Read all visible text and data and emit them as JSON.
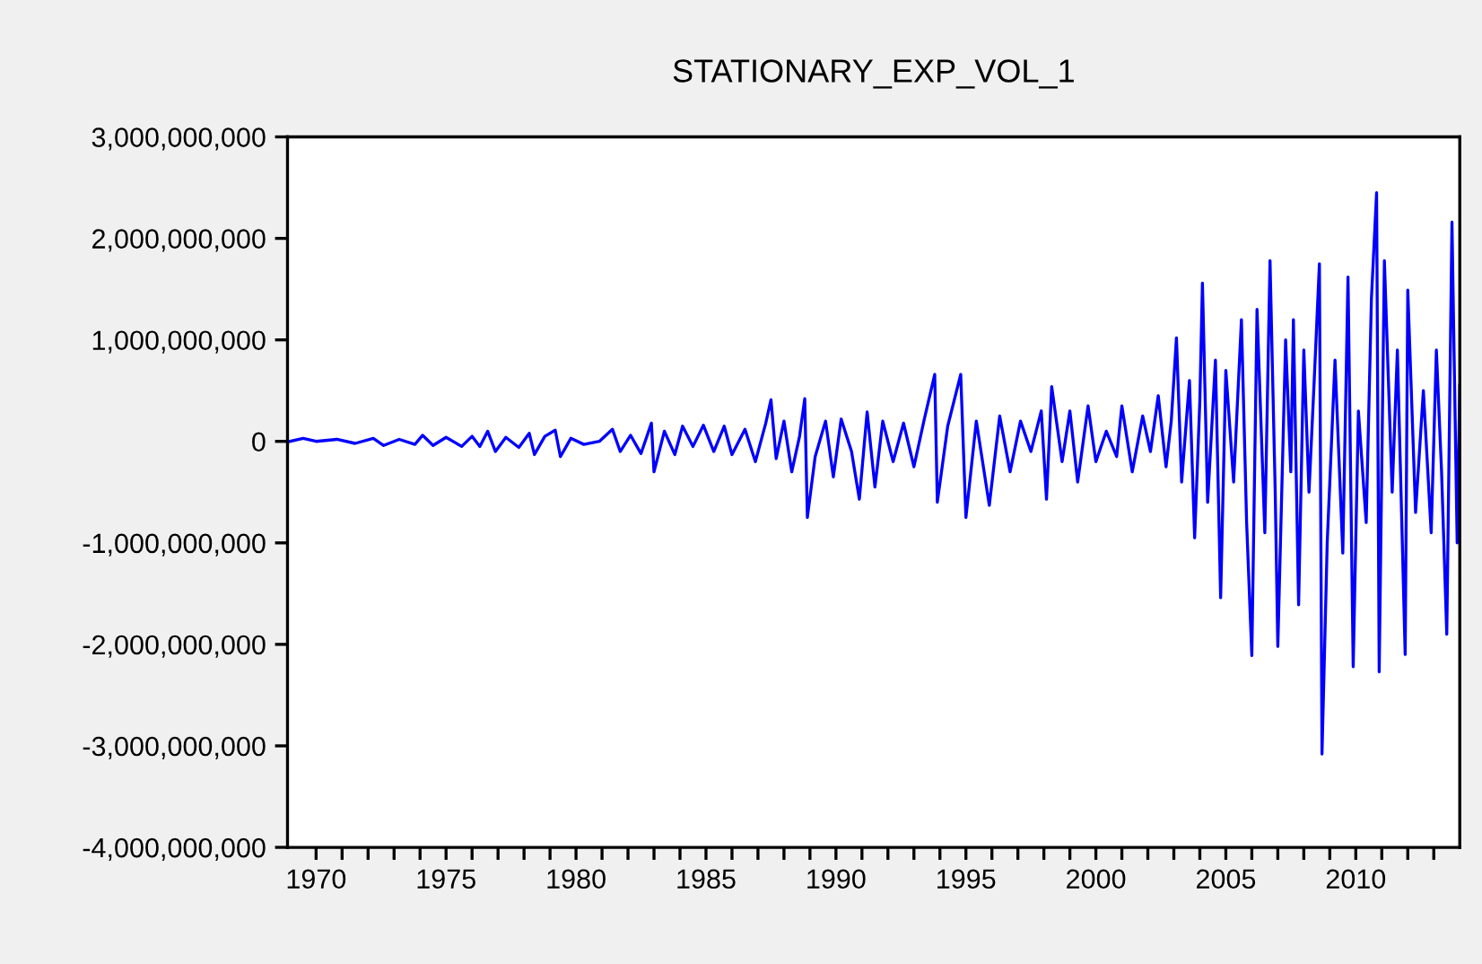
{
  "chart_data": {
    "type": "line",
    "title": "STATIONARY_EXP_VOL_1",
    "x": [
      1969.0,
      1969.5,
      1970.0,
      1970.8,
      1971.5,
      1972.2,
      1972.6,
      1973.2,
      1973.8,
      1974.1,
      1974.5,
      1975.0,
      1975.6,
      1976.0,
      1976.3,
      1976.6,
      1976.9,
      1977.3,
      1977.8,
      1978.2,
      1978.4,
      1978.8,
      1979.2,
      1979.4,
      1979.8,
      1980.3,
      1980.9,
      1981.4,
      1981.7,
      1982.1,
      1982.5,
      1982.9,
      1983.0,
      1983.4,
      1983.8,
      1984.1,
      1984.5,
      1984.9,
      1985.3,
      1985.7,
      1986.0,
      1986.5,
      1986.9,
      1987.3,
      1987.5,
      1987.7,
      1988.0,
      1988.3,
      1988.6,
      1988.8,
      1988.9,
      1989.2,
      1989.6,
      1989.9,
      1990.2,
      1990.6,
      1990.9,
      1991.2,
      1991.5,
      1991.8,
      1992.2,
      1992.6,
      1993.0,
      1993.4,
      1993.8,
      1993.9,
      1994.3,
      1994.8,
      1995.0,
      1995.4,
      1995.9,
      1996.3,
      1996.7,
      1997.1,
      1997.5,
      1997.9,
      1998.1,
      1998.3,
      1998.7,
      1999.0,
      1999.3,
      1999.7,
      2000.0,
      2000.4,
      2000.8,
      2001.0,
      2001.4,
      2001.8,
      2002.1,
      2002.4,
      2002.7,
      2002.9,
      2003.1,
      2003.3,
      2003.6,
      2003.8,
      2004.0,
      2004.1,
      2004.3,
      2004.6,
      2004.8,
      2005.0,
      2005.3,
      2005.6,
      2005.8,
      2006.0,
      2006.2,
      2006.5,
      2006.7,
      2006.9,
      2007.0,
      2007.3,
      2007.5,
      2007.6,
      2007.8,
      2008.0,
      2008.2,
      2008.4,
      2008.6,
      2008.7,
      2008.9,
      2009.2,
      2009.5,
      2009.7,
      2009.9,
      2010.1,
      2010.4,
      2010.6,
      2010.8,
      2010.9,
      2011.1,
      2011.4,
      2011.6,
      2011.9,
      2012.0,
      2012.3,
      2012.6,
      2012.9,
      2013.1,
      2013.3,
      2013.5,
      2013.7,
      2013.9,
      2014.0
    ],
    "series": [
      {
        "color": "#0000ff",
        "values": [
          0,
          30000000.0,
          0,
          20000000.0,
          -20000000.0,
          30000000.0,
          -40000000.0,
          20000000.0,
          -30000000.0,
          60000000.0,
          -40000000.0,
          40000000.0,
          -50000000.0,
          50000000.0,
          -50000000.0,
          100000000.0,
          -100000000.0,
          40000000.0,
          -60000000.0,
          80000000.0,
          -130000000.0,
          50000000.0,
          110000000.0,
          -150000000.0,
          30000000.0,
          -30000000.0,
          0,
          120000000.0,
          -100000000.0,
          60000000.0,
          -120000000.0,
          180000000.0,
          -300000000.0,
          100000000.0,
          -130000000.0,
          150000000.0,
          -50000000.0,
          160000000.0,
          -100000000.0,
          150000000.0,
          -130000000.0,
          120000000.0,
          -200000000.0,
          180000000.0,
          410000000.0,
          -170000000.0,
          200000000.0,
          -300000000.0,
          50000000.0,
          420000000.0,
          -750000000.0,
          -150000000.0,
          200000000.0,
          -350000000.0,
          220000000.0,
          -100000000.0,
          -570000000.0,
          290000000.0,
          -450000000.0,
          200000000.0,
          -200000000.0,
          180000000.0,
          -250000000.0,
          220000000.0,
          660000000.0,
          -600000000.0,
          150000000.0,
          660000000.0,
          -750000000.0,
          200000000.0,
          -630000000.0,
          250000000.0,
          -300000000.0,
          200000000.0,
          -100000000.0,
          300000000.0,
          -570000000.0,
          540000000.0,
          -200000000.0,
          300000000.0,
          -400000000.0,
          350000000.0,
          -200000000.0,
          100000000.0,
          -150000000.0,
          350000000.0,
          -300000000.0,
          250000000.0,
          -100000000.0,
          450000000.0,
          -250000000.0,
          200000000.0,
          1020000000.0,
          -400000000.0,
          600000000.0,
          -950000000.0,
          400000000.0,
          1560000000.0,
          -600000000.0,
          800000000.0,
          -1540000000.0,
          700000000.0,
          -400000000.0,
          1200000000.0,
          -800000000.0,
          -2110000000.0,
          1300000000.0,
          -900000000.0,
          1780000000.0,
          -500000000.0,
          -2020000000.0,
          1000000000.0,
          -300000000.0,
          1200000000.0,
          -1610000000.0,
          900000000.0,
          -500000000.0,
          600000000.0,
          1750000000.0,
          -3080000000.0,
          -1000000000.0,
          800000000.0,
          -1100000000.0,
          1620000000.0,
          -2220000000.0,
          300000000.0,
          -800000000.0,
          1400000000.0,
          2450000000.0,
          -2270000000.0,
          1780000000.0,
          -500000000.0,
          900000000.0,
          -2100000000.0,
          1490000000.0,
          -700000000.0,
          500000000.0,
          -900000000.0,
          900000000.0,
          -300000000.0,
          -1900000000.0,
          2160000000.0,
          -1000000000.0,
          550000000.0
        ]
      }
    ],
    "xlim": [
      1968.9,
      2014.0
    ],
    "xticks": [
      {
        "value": 1970,
        "label": "1970"
      },
      {
        "value": 1971,
        "label": null
      },
      {
        "value": 1972,
        "label": null
      },
      {
        "value": 1973,
        "label": null
      },
      {
        "value": 1974,
        "label": null
      },
      {
        "value": 1975,
        "label": "1975"
      },
      {
        "value": 1976,
        "label": null
      },
      {
        "value": 1977,
        "label": null
      },
      {
        "value": 1978,
        "label": null
      },
      {
        "value": 1979,
        "label": null
      },
      {
        "value": 1980,
        "label": "1980"
      },
      {
        "value": 1981,
        "label": null
      },
      {
        "value": 1982,
        "label": null
      },
      {
        "value": 1983,
        "label": null
      },
      {
        "value": 1984,
        "label": null
      },
      {
        "value": 1985,
        "label": "1985"
      },
      {
        "value": 1986,
        "label": null
      },
      {
        "value": 1987,
        "label": null
      },
      {
        "value": 1988,
        "label": null
      },
      {
        "value": 1989,
        "label": null
      },
      {
        "value": 1990,
        "label": "1990"
      },
      {
        "value": 1991,
        "label": null
      },
      {
        "value": 1992,
        "label": null
      },
      {
        "value": 1993,
        "label": null
      },
      {
        "value": 1994,
        "label": null
      },
      {
        "value": 1995,
        "label": "1995"
      },
      {
        "value": 1996,
        "label": null
      },
      {
        "value": 1997,
        "label": null
      },
      {
        "value": 1998,
        "label": null
      },
      {
        "value": 1999,
        "label": null
      },
      {
        "value": 2000,
        "label": "2000"
      },
      {
        "value": 2001,
        "label": null
      },
      {
        "value": 2002,
        "label": null
      },
      {
        "value": 2003,
        "label": null
      },
      {
        "value": 2004,
        "label": null
      },
      {
        "value": 2005,
        "label": "2005"
      },
      {
        "value": 2006,
        "label": null
      },
      {
        "value": 2007,
        "label": null
      },
      {
        "value": 2008,
        "label": null
      },
      {
        "value": 2009,
        "label": null
      },
      {
        "value": 2010,
        "label": "2010"
      },
      {
        "value": 2011,
        "label": null
      },
      {
        "value": 2012,
        "label": null
      },
      {
        "value": 2013,
        "label": null
      }
    ],
    "ylim": [
      -4000000000,
      3000000000
    ],
    "yticks": [
      {
        "value": -4000000000,
        "label": "-4,000,000,000"
      },
      {
        "value": -3000000000,
        "label": "-3,000,000,000"
      },
      {
        "value": -2000000000,
        "label": "-2,000,000,000"
      },
      {
        "value": -1000000000,
        "label": "-1,000,000,000"
      },
      0,
      {
        "value": 1000000000,
        "label": "1,000,000,000"
      },
      {
        "value": 2000000000,
        "label": "2,000,000,000"
      },
      {
        "value": 3000000000,
        "label": "3,000,000,000"
      }
    ],
    "grid": false,
    "legend": false,
    "marker": "none",
    "line_style": "solid"
  }
}
